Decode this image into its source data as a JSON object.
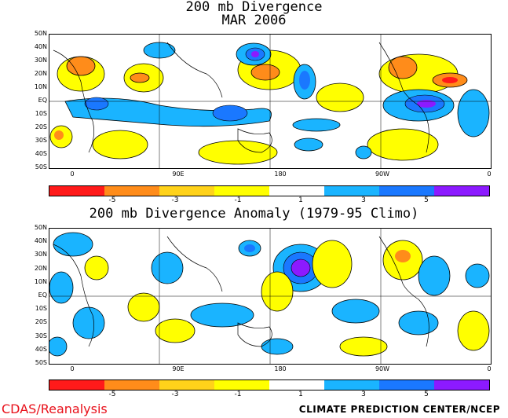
{
  "panel1": {
    "title_line1": "200 mb Divergence",
    "title_line2": "MAR 2006"
  },
  "panel2": {
    "title": "200 mb Divergence Anomaly (1979-95 Climo)"
  },
  "lat_labels": [
    "50N",
    "40N",
    "30N",
    "20N",
    "10N",
    "EQ",
    "10S",
    "20S",
    "30S",
    "40S",
    "50S"
  ],
  "lon_labels": [
    "0",
    "90E",
    "180",
    "90W",
    "0"
  ],
  "colorbar": {
    "colors": [
      "#ff1a1a",
      "#ff8c1a",
      "#ffd21a",
      "#ffff00",
      "#ffffff",
      "#1ab4ff",
      "#1a78ff",
      "#8c1aff"
    ],
    "ticks": [
      "-5",
      "-3",
      "-1",
      "1",
      "3",
      "5"
    ]
  },
  "footer": {
    "left": "CDAS/Reanalysis",
    "right": "CLIMATE PREDICTION CENTER/NCEP"
  }
}
